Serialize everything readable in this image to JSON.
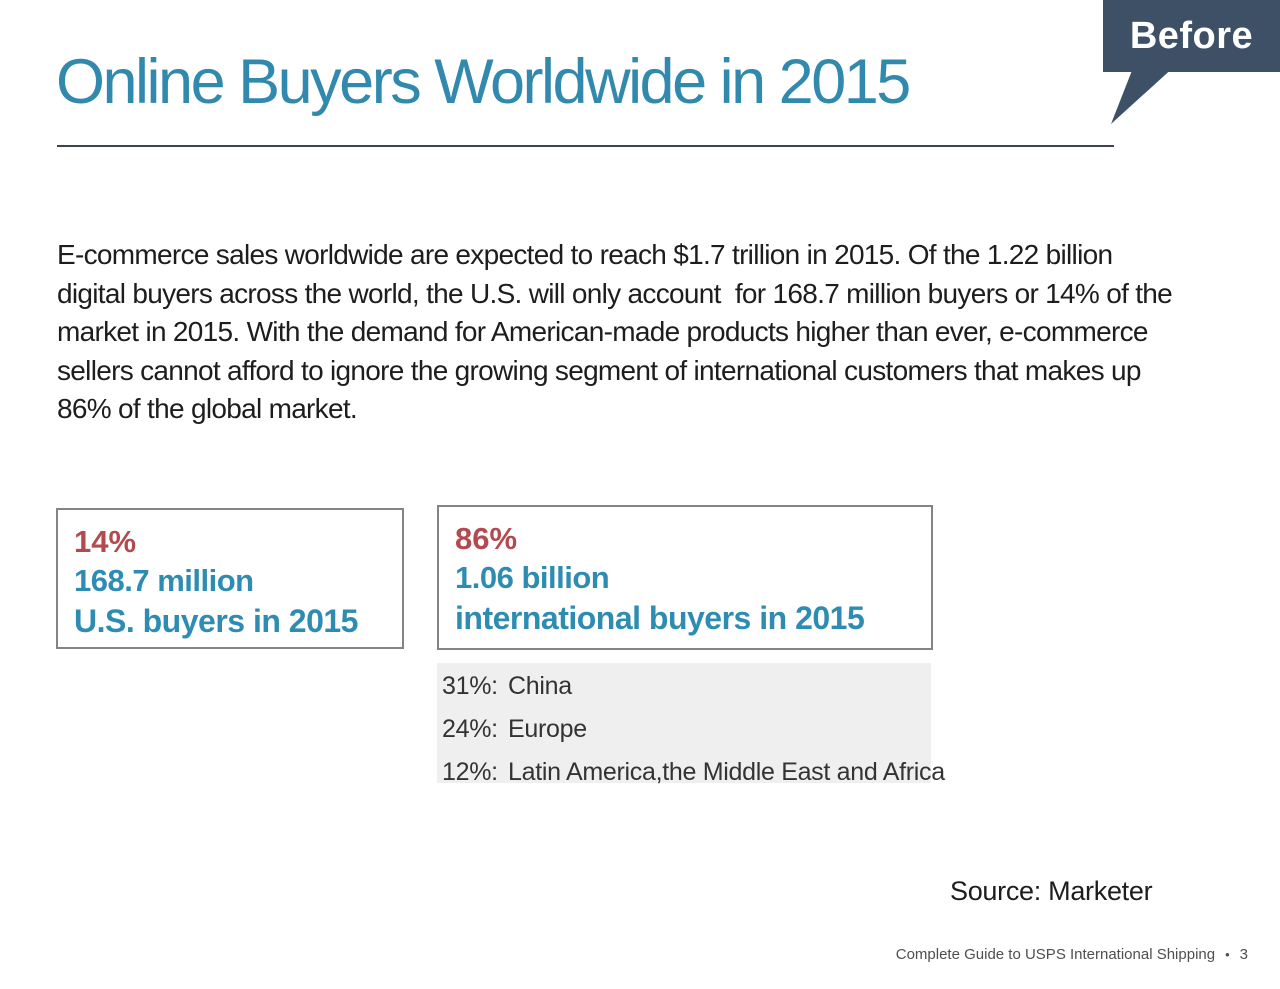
{
  "badge": {
    "label": "Before"
  },
  "title": {
    "text": "Online Buyers Worldwide in 2015"
  },
  "paragraph": {
    "text": "E-commerce sales worldwide are expected to reach $1.7 trillion in 2015. Of the 1.22 billion digital buyers across the world, the U.S. will only account  for 168.7 million buyers or 14% of the market in 2015. With the demand for American-made products higher than ever, e-commerce sellers cannot afford to ignore the growing segment of international customers that makes up 86% of the global market."
  },
  "stat_boxes": [
    {
      "percent": "14%",
      "value": "168.7 million",
      "label": "U.S. buyers in 2015"
    },
    {
      "percent": "86%",
      "value": "1.06 billion",
      "label": "international buyers in 2015"
    }
  ],
  "breakdown": [
    {
      "percent": "31%:",
      "region": "China"
    },
    {
      "percent": "24%:",
      "region": "Europe"
    },
    {
      "percent": "12%:",
      "region": "Latin America,the Middle East and Africa"
    }
  ],
  "source": {
    "text": "Source: Marketer"
  },
  "footer": {
    "text": "Complete Guide to USPS International Shipping",
    "separator": "•",
    "page": "3"
  },
  "colors": {
    "title_blue": "#3189ae",
    "stat_red": "#b34a4f",
    "stat_blue": "#2e8cb3",
    "badge_bg": "#3d5066",
    "divider": "#3c434f",
    "body_text": "#1d1d1d",
    "list_bg": "#f0eff0",
    "list_text": "#333333",
    "footer_gray": "#4f4f4f",
    "box_border": "#848484"
  }
}
